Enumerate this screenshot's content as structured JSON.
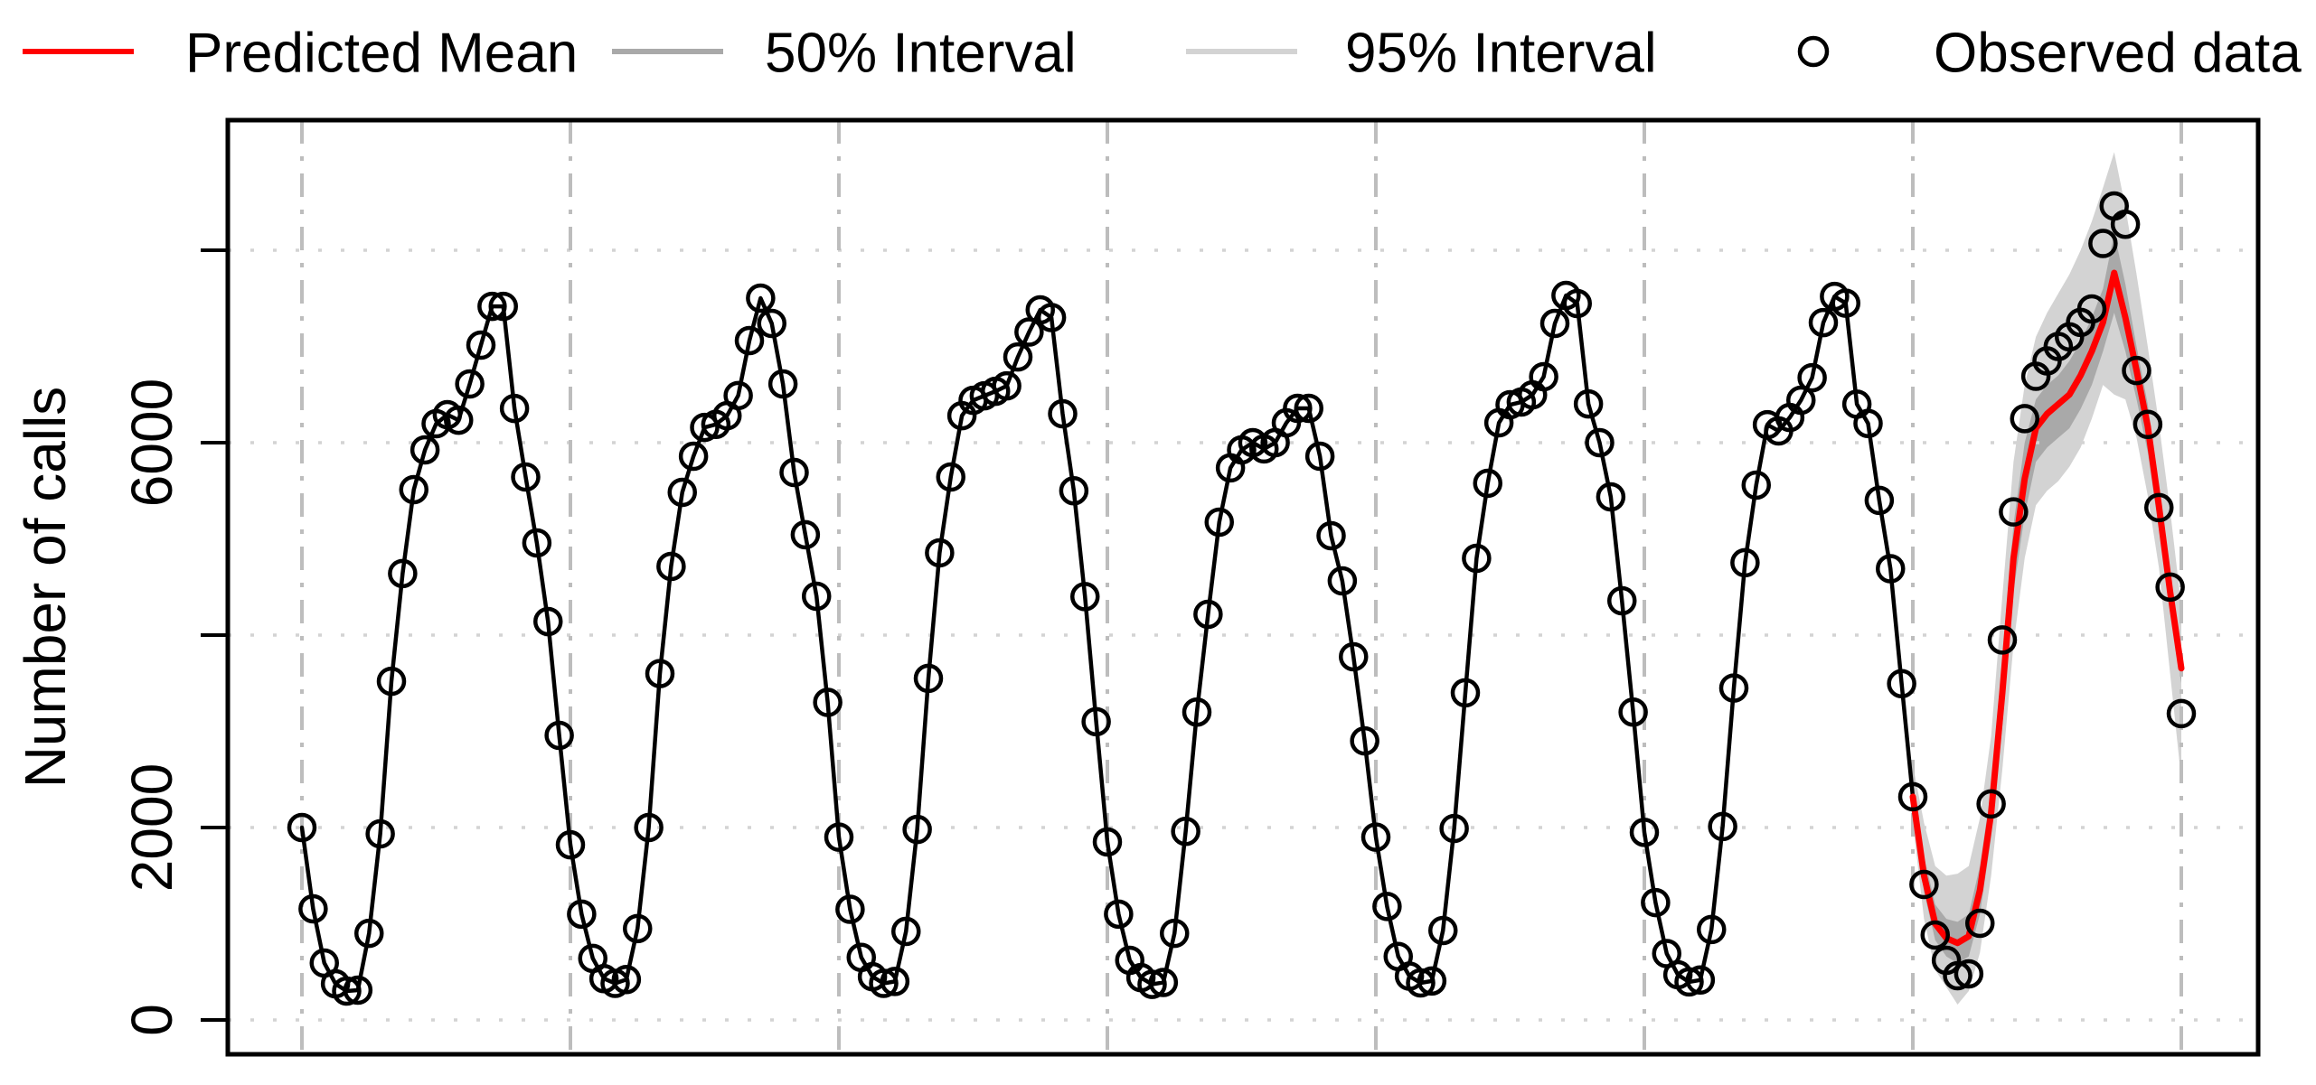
{
  "legend": {
    "items": [
      {
        "label": "Predicted Mean",
        "swatch": "line",
        "color": "#ff0000"
      },
      {
        "label": "50% Interval",
        "swatch": "line",
        "color": "#a9a9a9"
      },
      {
        "label": "95% Interval",
        "swatch": "line",
        "color": "#d3d3d3"
      },
      {
        "label": "Observed data",
        "swatch": "circle",
        "color": "#000000"
      }
    ]
  },
  "colors": {
    "predicted_mean": "#ff0000",
    "interval_50": "#a9a9a9",
    "interval_95": "#d3d3d3",
    "observed": "#000000",
    "grid_horizontal": "#d3d3d3",
    "grid_vertical": "#bdbdbd",
    "frame": "#000000"
  },
  "chart_data": {
    "type": "line",
    "title": "",
    "xlabel": "",
    "ylabel": "Number of calls",
    "ylim": [
      -360,
      9360
    ],
    "grid": true,
    "legend_position": "top",
    "y_ticks": [
      {
        "value": 0,
        "label": "0"
      },
      {
        "value": 2000,
        "label": "2000"
      },
      {
        "value": 4000,
        "label": ""
      },
      {
        "value": 6000,
        "label": "6000"
      },
      {
        "value": 8000,
        "label": ""
      }
    ],
    "x_axis": {
      "n_points": 169,
      "points_per_cycle": 24,
      "gridline_indices": [
        0,
        24,
        48,
        72,
        96,
        120,
        144,
        168
      ],
      "tick_labels_shown": false
    },
    "series": [
      {
        "name": "Observed data",
        "type": "scatter_with_line",
        "marker": "open-circle",
        "line_until_index": 144,
        "values": [
          2000,
          1155,
          592,
          376,
          300,
          310,
          900,
          1934,
          3520,
          4640,
          5512,
          5925,
          6197,
          6291,
          6234,
          6610,
          7014,
          7417,
          7417,
          6356,
          5643,
          4958,
          4141,
          2958,
          1820,
          1100,
          640,
          430,
          380,
          420,
          950,
          2000,
          3600,
          4714,
          5484,
          5859,
          6159,
          6190,
          6280,
          6490,
          7061,
          7502,
          7239,
          6610,
          5690,
          5043,
          4404,
          3300,
          1900,
          1150,
          650,
          450,
          380,
          400,
          920,
          1980,
          3550,
          4855,
          5643,
          6281,
          6440,
          6487,
          6534,
          6590,
          6891,
          7150,
          7380,
          7300,
          6300,
          5500,
          4400,
          3100,
          1850,
          1100,
          620,
          440,
          370,
          390,
          900,
          1960,
          3200,
          4216,
          5174,
          5738,
          5925,
          6000,
          5935,
          6000,
          6206,
          6357,
          6357,
          5859,
          5033,
          4563,
          3775,
          2900,
          1900,
          1180,
          660,
          455,
          385,
          405,
          930,
          1990,
          3400,
          4798,
          5578,
          6206,
          6394,
          6422,
          6497,
          6685,
          7239,
          7530,
          7446,
          6403,
          6000,
          5437,
          4357,
          3200,
          1950,
          1220,
          690,
          470,
          395,
          415,
          940,
          2010,
          3450,
          4752,
          5559,
          6187,
          6122,
          6262,
          6441,
          6675,
          7248,
          7520,
          7450,
          6400,
          6200,
          5400,
          4690,
          3495,
          2320,
          1408,
          883,
          620,
          460,
          479,
          1005,
          2245,
          3950,
          5280,
          6250,
          6690,
          6850,
          7000,
          7100,
          7250,
          7390,
          8070,
          8460,
          8270,
          6750,
          6190,
          5325,
          4499,
          3184
        ]
      },
      {
        "name": "Predicted Mean",
        "type": "line",
        "start_index": 144,
        "values": [
          2320,
          1500,
          1000,
          850,
          800,
          870,
          1350,
          2150,
          3400,
          4800,
          5625,
          6150,
          6300,
          6400,
          6500,
          6700,
          6950,
          7250,
          7765,
          7300,
          6750,
          6170,
          5340,
          4450,
          3655
        ]
      },
      {
        "name": "50% Interval",
        "type": "band",
        "start_index": 144,
        "lower": [
          2200,
          1330,
          830,
          660,
          590,
          660,
          1100,
          1900,
          3050,
          4450,
          5250,
          5800,
          5950,
          6050,
          6150,
          6350,
          6600,
          6950,
          7350,
          6950,
          6450,
          5900,
          5100,
          4250,
          3500
        ],
        "upper": [
          2450,
          1700,
          1200,
          1050,
          1020,
          1100,
          1600,
          2400,
          3750,
          5150,
          6000,
          6450,
          6600,
          6700,
          6850,
          7050,
          7300,
          7600,
          8180,
          7650,
          7000,
          6400,
          5550,
          4650,
          3810
        ]
      },
      {
        "name": "95% Interval",
        "type": "band",
        "start_index": 144,
        "lower": [
          2050,
          1050,
          520,
          340,
          160,
          300,
          700,
          1500,
          2600,
          3900,
          4800,
          5350,
          5500,
          5600,
          5750,
          5950,
          6250,
          6600,
          6500,
          6450,
          6050,
          5450,
          4700,
          3600,
          2500
        ],
        "upper": [
          2650,
          2050,
          1600,
          1500,
          1520,
          1600,
          2100,
          2950,
          4400,
          5800,
          6600,
          7100,
          7350,
          7550,
          7750,
          8000,
          8300,
          8650,
          9020,
          8450,
          7750,
          7000,
          6200,
          5300,
          4300
        ]
      }
    ]
  }
}
